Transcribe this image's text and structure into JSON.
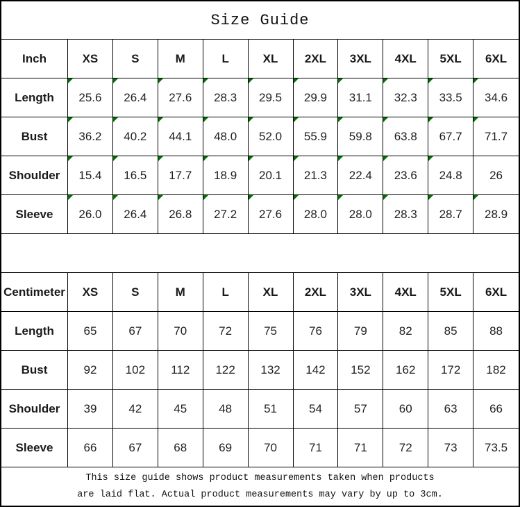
{
  "title": "Size Guide",
  "colors": {
    "flag_triangle": "#007000",
    "border": "#000000",
    "text": "#1f1f1f",
    "background": "#ffffff"
  },
  "icons": {
    "flag_icon_name": "excel-text-flag-triangle-icon"
  },
  "tables": [
    {
      "name": "inch",
      "header": [
        "Inch",
        "XS",
        "S",
        "M",
        "L",
        "XL",
        "2XL",
        "3XL",
        "4XL",
        "5XL",
        "6XL"
      ],
      "rows": [
        {
          "label": "Length",
          "values": [
            "25.6",
            "26.4",
            "27.6",
            "28.3",
            "29.5",
            "29.9",
            "31.1",
            "32.3",
            "33.5",
            "34.6"
          ],
          "flags": [
            1,
            1,
            1,
            1,
            1,
            1,
            1,
            1,
            1,
            1
          ]
        },
        {
          "label": "Bust",
          "values": [
            "36.2",
            "40.2",
            "44.1",
            "48.0",
            "52.0",
            "55.9",
            "59.8",
            "63.8",
            "67.7",
            "71.7"
          ],
          "flags": [
            1,
            1,
            1,
            1,
            1,
            1,
            1,
            1,
            1,
            1
          ]
        },
        {
          "label": "Shoulder",
          "values": [
            "15.4",
            "16.5",
            "17.7",
            "18.9",
            "20.1",
            "21.3",
            "22.4",
            "23.6",
            "24.8",
            "26"
          ],
          "flags": [
            1,
            1,
            1,
            1,
            1,
            1,
            1,
            1,
            1,
            0
          ]
        },
        {
          "label": "Sleeve",
          "values": [
            "26.0",
            "26.4",
            "26.8",
            "27.2",
            "27.6",
            "28.0",
            "28.0",
            "28.3",
            "28.7",
            "28.9"
          ],
          "flags": [
            1,
            1,
            1,
            1,
            1,
            1,
            1,
            1,
            1,
            1
          ]
        }
      ]
    },
    {
      "name": "centimeter",
      "header": [
        "Centimeter",
        "XS",
        "S",
        "M",
        "L",
        "XL",
        "2XL",
        "3XL",
        "4XL",
        "5XL",
        "6XL"
      ],
      "rows": [
        {
          "label": "Length",
          "values": [
            "65",
            "67",
            "70",
            "72",
            "75",
            "76",
            "79",
            "82",
            "85",
            "88"
          ]
        },
        {
          "label": "Bust",
          "values": [
            "92",
            "102",
            "112",
            "122",
            "132",
            "142",
            "152",
            "162",
            "172",
            "182"
          ]
        },
        {
          "label": "Shoulder",
          "values": [
            "39",
            "42",
            "45",
            "48",
            "51",
            "54",
            "57",
            "60",
            "63",
            "66"
          ]
        },
        {
          "label": "Sleeve",
          "values": [
            "66",
            "67",
            "68",
            "69",
            "70",
            "71",
            "71",
            "72",
            "73",
            "73.5"
          ]
        }
      ]
    }
  ],
  "footer": {
    "line1": "This size guide shows product measurements taken when products",
    "line2": "are laid flat. Actual product measurements may vary by up to 3cm."
  }
}
